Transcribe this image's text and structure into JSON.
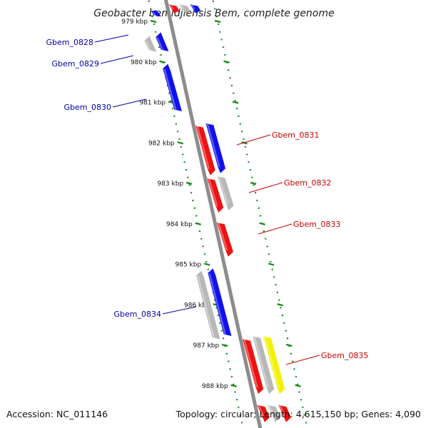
{
  "title": "Geobacter bemidjiensis Bem, complete genome",
  "footer": {
    "accession": "Accession: NC_011146",
    "topology": "Topology: circular; Length: 4,615,150 bp; Genes: 4,090"
  },
  "colors": {
    "backbone": "#8c8c8c",
    "tick_dots": "#1a8a1a",
    "label_forward": "#cc0000",
    "label_reverse": "#0000aa",
    "gene_red": "#ee1111",
    "gene_blue": "#1111ee",
    "gene_grey": "#b8b8b8",
    "gene_yellow": "#f2f200"
  },
  "ticks": [
    "979 kbp",
    "980 kbp",
    "981 kbp",
    "982 kbp",
    "983 kbp",
    "984 kbp",
    "985 kbp",
    "986 kbp",
    "987 kbp",
    "988 kbp"
  ],
  "gene_labels": [
    {
      "name": "Gbem_0828",
      "strand": "reverse"
    },
    {
      "name": "Gbem_0829",
      "strand": "reverse"
    },
    {
      "name": "Gbem_0830",
      "strand": "reverse"
    },
    {
      "name": "Gbem_0831",
      "strand": "forward"
    },
    {
      "name": "Gbem_0832",
      "strand": "forward"
    },
    {
      "name": "Gbem_0833",
      "strand": "forward"
    },
    {
      "name": "Gbem_0834",
      "strand": "reverse"
    },
    {
      "name": "Gbem_0835",
      "strand": "forward"
    }
  ],
  "features": [
    {
      "start": 978.72,
      "end": 978.86,
      "strand": "reverse",
      "track": 2,
      "color": "gene_blue"
    },
    {
      "start": 978.6,
      "end": 978.8,
      "strand": "forward",
      "track": 1,
      "color": "gene_red"
    },
    {
      "start": 978.6,
      "end": 978.8,
      "strand": "forward",
      "track": 2,
      "color": "gene_grey"
    },
    {
      "start": 978.6,
      "end": 978.8,
      "strand": "forward",
      "track": 3,
      "color": "gene_blue"
    },
    {
      "start": 979.36,
      "end": 979.73,
      "strand": "reverse",
      "track": 1,
      "color": "gene_grey"
    },
    {
      "start": 979.27,
      "end": 979.72,
      "strand": "reverse",
      "track": 2,
      "color": "gene_blue"
    },
    {
      "start": 980.05,
      "end": 981.2,
      "strand": "reverse",
      "track": 2,
      "color": "gene_blue"
    },
    {
      "start": 981.6,
      "end": 982.8,
      "strand": "forward",
      "track": 1,
      "color": "gene_red"
    },
    {
      "start": 981.54,
      "end": 982.75,
      "strand": "forward",
      "track": 2,
      "color": "gene_blue"
    },
    {
      "start": 982.9,
      "end": 983.72,
      "strand": "forward",
      "track": 1,
      "color": "gene_red"
    },
    {
      "start": 982.85,
      "end": 983.67,
      "strand": "forward",
      "track": 2,
      "color": "gene_grey"
    },
    {
      "start": 983.99,
      "end": 984.81,
      "strand": "forward",
      "track": 1,
      "color": "gene_red"
    },
    {
      "start": 985.16,
      "end": 986.83,
      "strand": "reverse",
      "track": 1,
      "color": "gene_grey"
    },
    {
      "start": 985.1,
      "end": 986.75,
      "strand": "reverse",
      "track": 2,
      "color": "gene_blue"
    },
    {
      "start": 986.87,
      "end": 988.2,
      "strand": "forward",
      "track": 1,
      "color": "gene_red"
    },
    {
      "start": 986.8,
      "end": 988.2,
      "strand": "forward",
      "track": 2,
      "color": "gene_grey"
    },
    {
      "start": 986.8,
      "end": 988.2,
      "strand": "forward",
      "track": 3,
      "color": "gene_yellow"
    },
    {
      "start": 988.5,
      "end": 988.9,
      "strand": "forward",
      "track": 1,
      "color": "gene_red"
    },
    {
      "start": 988.5,
      "end": 988.9,
      "strand": "forward",
      "track": 2,
      "color": "gene_grey"
    },
    {
      "start": 988.5,
      "end": 988.9,
      "strand": "forward",
      "track": 3,
      "color": "gene_red"
    }
  ]
}
